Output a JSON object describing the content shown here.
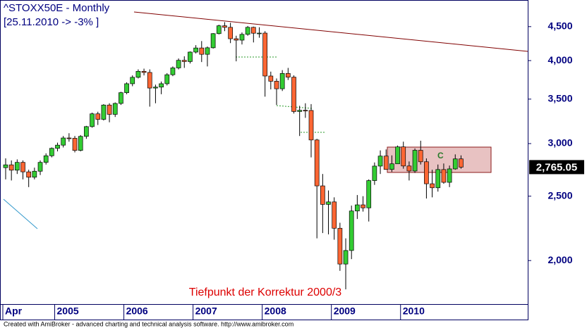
{
  "chart_data": {
    "type": "candlestick",
    "title": "^STOXX50E - Monthly",
    "subtitle": "[25.11.2010 -> -3% ]",
    "annotation": "Tiefpunkt der Korrektur 2000/3",
    "box_label": "C",
    "footer": "Created with AmiBroker - advanced charting and technical analysis software. http://www.amibroker.com",
    "log_scale": true,
    "ylim": [
      1720,
      4935
    ],
    "yticks": [
      {
        "value": 2000,
        "label": "2,000"
      },
      {
        "value": 2500,
        "label": "2,500"
      },
      {
        "value": 3000,
        "label": "3,000"
      },
      {
        "value": 3500,
        "label": "3,500"
      },
      {
        "value": 4000,
        "label": "4,000"
      },
      {
        "value": 4500,
        "label": "4,500"
      }
    ],
    "up_color": "#33cc33",
    "down_color": "#ff6633",
    "current_price": {
      "value": 2765.05,
      "label": "2,765.05"
    },
    "categories": [
      "Apr",
      null,
      null,
      null,
      null,
      null,
      null,
      null,
      null,
      "2005",
      null,
      null,
      null,
      null,
      null,
      null,
      null,
      null,
      null,
      null,
      null,
      "2006",
      null,
      null,
      null,
      null,
      null,
      null,
      null,
      null,
      null,
      null,
      null,
      "2007",
      null,
      null,
      null,
      null,
      null,
      null,
      null,
      null,
      null,
      null,
      null,
      "2008",
      null,
      null,
      null,
      null,
      null,
      null,
      null,
      null,
      null,
      null,
      null,
      "2009",
      null,
      null,
      null,
      null,
      null,
      null,
      null,
      null,
      null,
      null,
      null,
      "2010",
      null,
      null,
      null,
      null,
      null,
      null,
      null,
      null,
      null,
      null
    ],
    "open": [
      2760,
      2787,
      2736,
      2811,
      2720,
      2670,
      2726,
      2811,
      2876,
      2951,
      2984,
      3059,
      3056,
      2930,
      3076,
      3182,
      3326,
      3263,
      3429,
      3320,
      3448,
      3579,
      3692,
      3775,
      3854,
      3839,
      3637,
      3649,
      3692,
      3809,
      3900,
      4004,
      3987,
      4120,
      4179,
      4088,
      4182,
      4392,
      4513,
      4489,
      4315,
      4294,
      4381,
      4489,
      4398,
      4400,
      3792,
      3724,
      3628,
      3826,
      3777,
      3353,
      3367,
      3365,
      3038,
      2591,
      2430,
      2451,
      2237,
      1976,
      2071,
      2375,
      2426,
      2401,
      2639,
      2775,
      2873,
      2743,
      2797,
      2966,
      2776,
      2728,
      2931,
      2817,
      2610,
      2574,
      2742,
      2623,
      2748,
      2845
    ],
    "high": [
      2850,
      2830,
      2840,
      2830,
      2740,
      2760,
      2830,
      2900,
      2960,
      3010,
      3080,
      3110,
      3080,
      3090,
      3190,
      3340,
      3350,
      3440,
      3450,
      3460,
      3590,
      3710,
      3800,
      3880,
      3890,
      3880,
      3680,
      3720,
      3830,
      3920,
      4030,
      4060,
      4130,
      4220,
      4280,
      4200,
      4400,
      4530,
      4570,
      4560,
      4360,
      4410,
      4510,
      4500,
      4490,
      4430,
      3850,
      3760,
      3870,
      3900,
      3800,
      3420,
      3450,
      3440,
      3050,
      2700,
      2550,
      2490,
      2280,
      2160,
      2420,
      2510,
      2500,
      2650,
      2810,
      2930,
      2940,
      2880,
      2980,
      3020,
      2820,
      2950,
      3030,
      2850,
      2740,
      2790,
      2800,
      2780,
      2890,
      2880
    ],
    "low": [
      2650,
      2640,
      2700,
      2650,
      2580,
      2650,
      2690,
      2790,
      2860,
      2920,
      2960,
      3020,
      2910,
      2920,
      3050,
      3170,
      3200,
      3250,
      3230,
      3290,
      3430,
      3560,
      3660,
      3760,
      3800,
      3410,
      3450,
      3560,
      3670,
      3790,
      3880,
      3900,
      3960,
      4100,
      3980,
      3920,
      4170,
      4380,
      4430,
      4250,
      3990,
      4230,
      4360,
      4260,
      4330,
      3530,
      3620,
      3430,
      3600,
      3740,
      3330,
      3080,
      3280,
      2860,
      2160,
      2200,
      2190,
      2150,
      1930,
      1810,
      2010,
      2310,
      2370,
      2290,
      2600,
      2700,
      2740,
      2720,
      2800,
      2750,
      2640,
      2710,
      2790,
      2480,
      2490,
      2540,
      2610,
      2580,
      2740,
      2750
    ],
    "close": [
      2787,
      2736,
      2811,
      2720,
      2670,
      2726,
      2811,
      2876,
      2951,
      2984,
      3059,
      3056,
      2930,
      3076,
      3182,
      3326,
      3263,
      3429,
      3320,
      3448,
      3579,
      3692,
      3775,
      3854,
      3839,
      3637,
      3649,
      3692,
      3809,
      3900,
      4004,
      3987,
      4120,
      4179,
      4088,
      4182,
      4392,
      4513,
      4489,
      4315,
      4294,
      4381,
      4489,
      4398,
      4400,
      3792,
      3724,
      3628,
      3826,
      3777,
      3353,
      3367,
      3365,
      3038,
      2591,
      2430,
      2451,
      2237,
      1976,
      2071,
      2375,
      2426,
      2401,
      2639,
      2775,
      2873,
      2743,
      2797,
      2966,
      2776,
      2728,
      2931,
      2817,
      2610,
      2574,
      2742,
      2623,
      2748,
      2845,
      2765
    ]
  }
}
